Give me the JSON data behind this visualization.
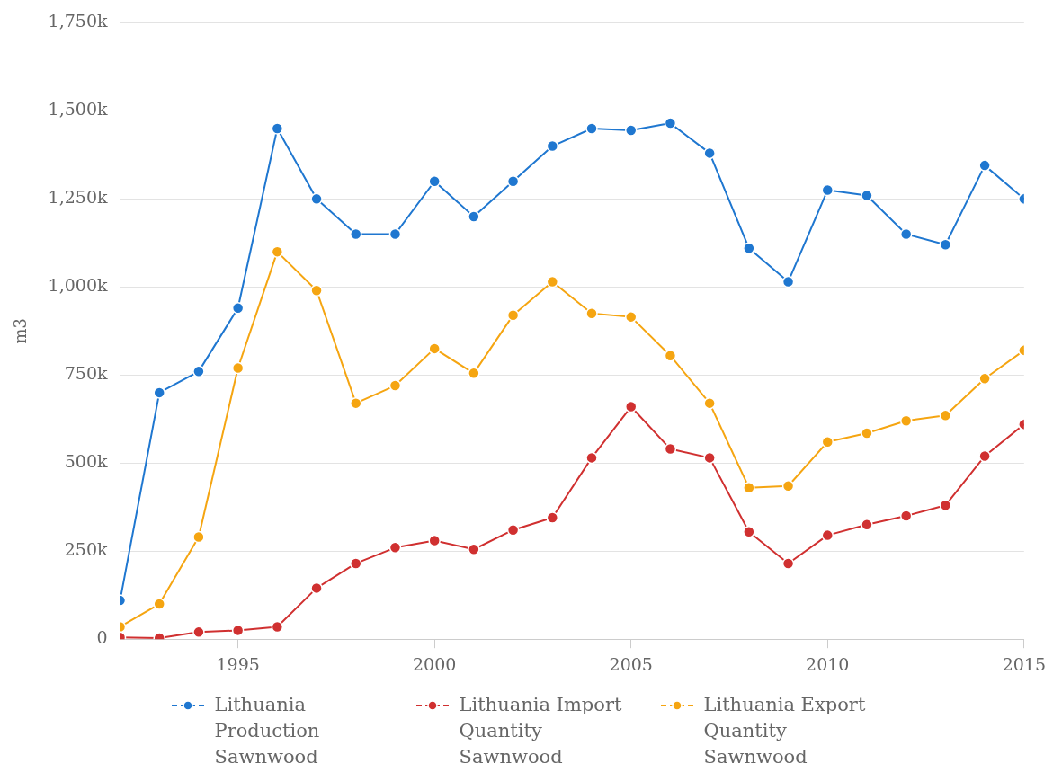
{
  "chart_data": {
    "type": "line",
    "ylabel": "m3",
    "x": [
      1992,
      1993,
      1994,
      1995,
      1996,
      1997,
      1998,
      1999,
      2000,
      2001,
      2002,
      2003,
      2004,
      2005,
      2006,
      2007,
      2008,
      2009,
      2010,
      2011,
      2012,
      2013,
      2014,
      2015
    ],
    "series": [
      {
        "name": "Lithuania Production Sawnwood",
        "color": "#1f77d0",
        "values": [
          110000,
          700000,
          760000,
          940000,
          1450000,
          1250000,
          1150000,
          1150000,
          1300000,
          1200000,
          1300000,
          1400000,
          1450000,
          1445000,
          1465000,
          1380000,
          1110000,
          1015000,
          1275000,
          1260000,
          1150000,
          1120000,
          1345000,
          1250000
        ]
      },
      {
        "name": "Lithuania Import Quantity Sawnwood",
        "color": "#d03030",
        "values": [
          5000,
          3000,
          20000,
          25000,
          35000,
          145000,
          215000,
          260000,
          280000,
          255000,
          310000,
          345000,
          515000,
          660000,
          540000,
          515000,
          305000,
          215000,
          295000,
          325000,
          350000,
          380000,
          520000,
          610000
        ]
      },
      {
        "name": "Lithuania Export Quantity Sawnwood",
        "color": "#f5a511",
        "values": [
          35000,
          100000,
          290000,
          770000,
          1100000,
          990000,
          670000,
          720000,
          825000,
          755000,
          920000,
          1015000,
          925000,
          915000,
          805000,
          670000,
          430000,
          435000,
          560000,
          585000,
          620000,
          635000,
          740000,
          820000
        ]
      }
    ],
    "xlim": [
      1992,
      2015
    ],
    "xticks": [
      1995,
      2000,
      2005,
      2010,
      2015
    ],
    "ylim": [
      0,
      1750000
    ],
    "yticks": [
      {
        "value": 0,
        "label": "0"
      },
      {
        "value": 250000,
        "label": "250k"
      },
      {
        "value": 500000,
        "label": "500k"
      },
      {
        "value": 750000,
        "label": "750k"
      },
      {
        "value": 1000000,
        "label": "1,000k"
      },
      {
        "value": 1250000,
        "label": "1,250k"
      },
      {
        "value": 1500000,
        "label": "1,500k"
      },
      {
        "value": 1750000,
        "label": "1,750k"
      }
    ],
    "grid": "y",
    "legend": "bottom",
    "marker": "circle",
    "line_style": "solid"
  }
}
